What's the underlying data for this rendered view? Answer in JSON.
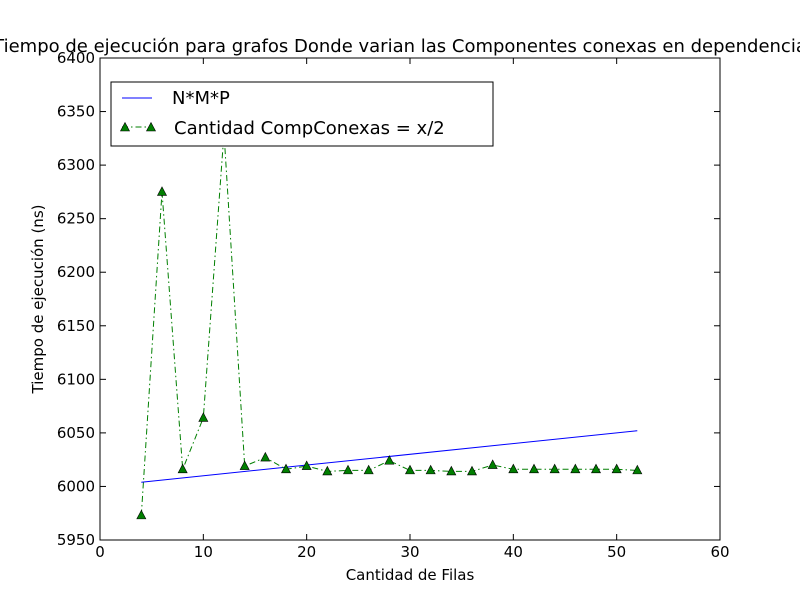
{
  "chart_data": {
    "type": "line",
    "title": "Tiempo de ejecución para grafos Donde varian las Componentes conexas en dependencia",
    "xlabel": "Cantidad de Filas",
    "ylabel": "Tiempo de ejecución (ns)",
    "xlim": [
      0,
      60
    ],
    "ylim": [
      5950,
      6400
    ],
    "xticks": [
      0,
      10,
      20,
      30,
      40,
      50,
      60
    ],
    "yticks": [
      5950,
      6000,
      6050,
      6100,
      6150,
      6200,
      6250,
      6300,
      6350,
      6400
    ],
    "legend_position": "top-left",
    "series": [
      {
        "name": "N*M*P",
        "color": "#0000ff",
        "style": "solid",
        "marker": "none",
        "x": [
          4,
          52
        ],
        "y": [
          6004,
          6052
        ]
      },
      {
        "name": "Cantidad CompConexas = x/2",
        "color": "#007f00",
        "style": "dashdot",
        "marker": "triangle",
        "x": [
          4,
          6,
          8,
          10,
          12,
          14,
          16,
          18,
          20,
          22,
          24,
          26,
          28,
          30,
          32,
          34,
          36,
          38,
          40,
          42,
          44,
          46,
          48,
          50,
          52
        ],
        "y": [
          5973,
          6275,
          6016,
          6064,
          6330,
          6019,
          6027,
          6016,
          6019,
          6014,
          6015,
          6015,
          6024,
          6015,
          6015,
          6014,
          6014,
          6020,
          6016,
          6016,
          6016,
          6016,
          6016,
          6016,
          6015
        ]
      }
    ]
  }
}
